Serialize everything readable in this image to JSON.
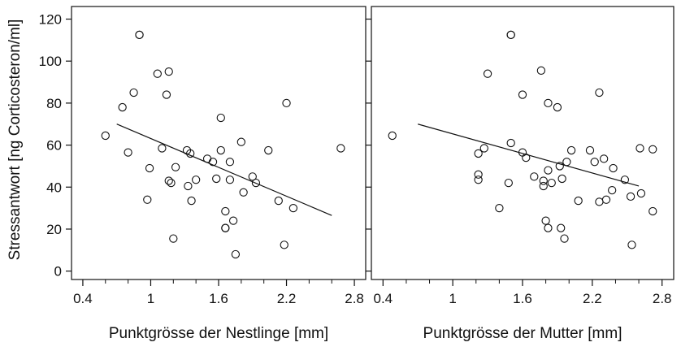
{
  "chart_data": [
    {
      "type": "scatter",
      "title": "",
      "xlabel": "Punktgrösse der Nestlinge [mm]",
      "ylabel": "Stressantwort [ng Corticosteron/ml]",
      "xlim": [
        0.3,
        2.9
      ],
      "ylim": [
        -4,
        126
      ],
      "xticks": [
        0.4,
        1,
        1.6,
        2.2,
        2.8
      ],
      "xtick_labels": [
        "0.4",
        "1",
        "1.6",
        "2.2",
        "2.8"
      ],
      "yticks": [
        0,
        20,
        40,
        60,
        80,
        100,
        120
      ],
      "ytick_labels": [
        "0",
        "20",
        "40",
        "60",
        "80",
        "100",
        "120"
      ],
      "grid": false,
      "points": [
        {
          "x": 0.9,
          "y": 112.5
        },
        {
          "x": 0.9,
          "y": 112.5
        },
        {
          "x": 0.6,
          "y": 64.5
        },
        {
          "x": 0.75,
          "y": 78
        },
        {
          "x": 0.85,
          "y": 85
        },
        {
          "x": 0.8,
          "y": 56.5
        },
        {
          "x": 0.97,
          "y": 34
        },
        {
          "x": 0.99,
          "y": 49
        },
        {
          "x": 1.06,
          "y": 94
        },
        {
          "x": 1.1,
          "y": 58.5
        },
        {
          "x": 1.14,
          "y": 84
        },
        {
          "x": 1.16,
          "y": 95
        },
        {
          "x": 1.16,
          "y": 43
        },
        {
          "x": 1.18,
          "y": 42
        },
        {
          "x": 1.2,
          "y": 15.5
        },
        {
          "x": 1.22,
          "y": 49.5
        },
        {
          "x": 1.32,
          "y": 57.5
        },
        {
          "x": 1.33,
          "y": 40.5
        },
        {
          "x": 1.35,
          "y": 56
        },
        {
          "x": 1.36,
          "y": 33.5
        },
        {
          "x": 1.4,
          "y": 43.5
        },
        {
          "x": 1.5,
          "y": 53.5
        },
        {
          "x": 1.55,
          "y": 52
        },
        {
          "x": 1.58,
          "y": 44
        },
        {
          "x": 1.62,
          "y": 73
        },
        {
          "x": 1.62,
          "y": 57.5
        },
        {
          "x": 1.66,
          "y": 28.5
        },
        {
          "x": 1.66,
          "y": 20.5
        },
        {
          "x": 1.66,
          "y": 20.5
        },
        {
          "x": 1.7,
          "y": 43.5
        },
        {
          "x": 1.7,
          "y": 52
        },
        {
          "x": 1.73,
          "y": 24
        },
        {
          "x": 1.75,
          "y": 8
        },
        {
          "x": 1.8,
          "y": 61.5
        },
        {
          "x": 1.82,
          "y": 37.5
        },
        {
          "x": 1.9,
          "y": 45
        },
        {
          "x": 1.93,
          "y": 42
        },
        {
          "x": 2.04,
          "y": 57.5
        },
        {
          "x": 2.13,
          "y": 33.5
        },
        {
          "x": 2.18,
          "y": 12.5
        },
        {
          "x": 2.2,
          "y": 80
        },
        {
          "x": 2.26,
          "y": 30
        },
        {
          "x": 2.68,
          "y": 58.5
        }
      ],
      "trend_line": {
        "x": [
          0.7,
          2.6
        ],
        "y": [
          70,
          26.5
        ]
      }
    },
    {
      "type": "scatter",
      "title": "",
      "xlabel": "Punktgrösse der Mutter [mm]",
      "ylabel": "",
      "xlim": [
        0.3,
        2.9
      ],
      "ylim": [
        -4,
        126
      ],
      "xticks": [
        0.4,
        1,
        1.6,
        2.2,
        2.8
      ],
      "xtick_labels": [
        "0.4",
        "1",
        "1.6",
        "2.2",
        "2.8"
      ],
      "yticks": [
        0,
        20,
        40,
        60,
        80,
        100,
        120
      ],
      "grid": false,
      "points": [
        {
          "x": 1.5,
          "y": 112.5
        },
        {
          "x": 1.5,
          "y": 112.5
        },
        {
          "x": 0.48,
          "y": 64.5
        },
        {
          "x": 1.22,
          "y": 56
        },
        {
          "x": 1.22,
          "y": 46
        },
        {
          "x": 1.22,
          "y": 43.5
        },
        {
          "x": 1.27,
          "y": 58.5
        },
        {
          "x": 1.3,
          "y": 94
        },
        {
          "x": 1.4,
          "y": 30
        },
        {
          "x": 1.48,
          "y": 42
        },
        {
          "x": 1.5,
          "y": 61
        },
        {
          "x": 1.6,
          "y": 84
        },
        {
          "x": 1.6,
          "y": 56.5
        },
        {
          "x": 1.63,
          "y": 54
        },
        {
          "x": 1.7,
          "y": 45
        },
        {
          "x": 1.76,
          "y": 95.5
        },
        {
          "x": 1.78,
          "y": 43
        },
        {
          "x": 1.78,
          "y": 40.5
        },
        {
          "x": 1.8,
          "y": 24
        },
        {
          "x": 1.82,
          "y": 80
        },
        {
          "x": 1.82,
          "y": 48
        },
        {
          "x": 1.82,
          "y": 20.5
        },
        {
          "x": 1.85,
          "y": 42
        },
        {
          "x": 1.9,
          "y": 78
        },
        {
          "x": 1.92,
          "y": 50
        },
        {
          "x": 1.93,
          "y": 20.5
        },
        {
          "x": 1.94,
          "y": 44
        },
        {
          "x": 1.96,
          "y": 15.5
        },
        {
          "x": 1.98,
          "y": 52
        },
        {
          "x": 2.02,
          "y": 57.5
        },
        {
          "x": 2.08,
          "y": 33.5
        },
        {
          "x": 2.18,
          "y": 57.5
        },
        {
          "x": 2.22,
          "y": 52
        },
        {
          "x": 2.26,
          "y": 85
        },
        {
          "x": 2.26,
          "y": 33
        },
        {
          "x": 2.3,
          "y": 53.5
        },
        {
          "x": 2.32,
          "y": 34
        },
        {
          "x": 2.37,
          "y": 38.5
        },
        {
          "x": 2.38,
          "y": 49
        },
        {
          "x": 2.48,
          "y": 43.5
        },
        {
          "x": 2.53,
          "y": 35.5
        },
        {
          "x": 2.54,
          "y": 12.5
        },
        {
          "x": 2.61,
          "y": 58.5
        },
        {
          "x": 2.62,
          "y": 37
        },
        {
          "x": 2.72,
          "y": 58
        },
        {
          "x": 2.72,
          "y": 28.5
        }
      ],
      "trend_line": {
        "x": [
          0.7,
          2.6
        ],
        "y": [
          70,
          40.5
        ]
      }
    }
  ]
}
